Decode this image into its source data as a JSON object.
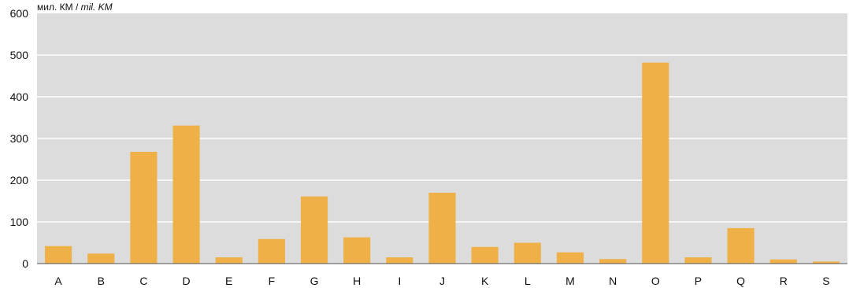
{
  "chart_data": {
    "type": "bar",
    "unit_label": "мил. КМ",
    "unit_label_separator": " / ",
    "unit_label_italic": "mil. KM",
    "categories": [
      "A",
      "B",
      "C",
      "D",
      "E",
      "F",
      "G",
      "H",
      "I",
      "J",
      "K",
      "L",
      "M",
      "N",
      "O",
      "P",
      "Q",
      "R",
      "S"
    ],
    "values": [
      42,
      24,
      268,
      331,
      15,
      59,
      161,
      63,
      15,
      170,
      40,
      50,
      27,
      11,
      482,
      15,
      85,
      10,
      5
    ],
    "ylim": [
      0,
      600
    ],
    "yticks": [
      0,
      100,
      200,
      300,
      400,
      500,
      600
    ],
    "grid": true,
    "colors": {
      "bar": "#EEB047",
      "plot_background": "#DCDCDC",
      "gridline": "#FFFFFF"
    }
  }
}
